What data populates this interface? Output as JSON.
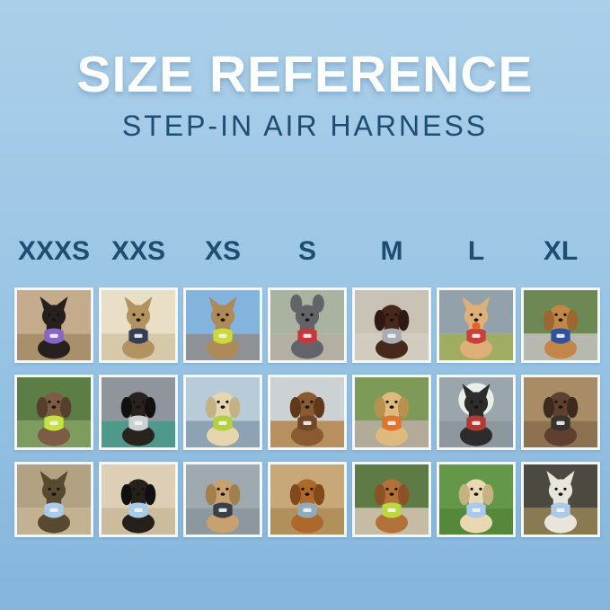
{
  "header": {
    "title": "SIZE REFERENCE",
    "subtitle": "STEP-IN AIR HARNESS"
  },
  "colors": {
    "background_top": "#abcfe9",
    "background_bottom": "#85b5dc",
    "title": "#fdfefe",
    "accent_dark": "#1d4e72",
    "tile_border": "#f4f8fb"
  },
  "sizes": [
    "XXXS",
    "XXS",
    "XS",
    "S",
    "M",
    "L",
    "XL"
  ],
  "grid": {
    "rows": 3,
    "columns": 7,
    "cells": [
      {
        "size": "XXXS",
        "row": 1,
        "label": "Black kitten wearing a purple harness indoors",
        "scene_top": "#c3ab8c",
        "scene_bottom": "#a8906d",
        "pet": "#26211e",
        "pet_dark": "#121010",
        "ears": "pointed",
        "harness": "#8766c4"
      },
      {
        "size": "XXS",
        "row": 1,
        "label": "Brown tabby bengal cat wearing a navy harness by cream curtains",
        "scene_top": "#e9dfc6",
        "scene_bottom": "#d6c9a9",
        "pet": "#b2925f",
        "pet_dark": "#6e5433",
        "ears": "pointed",
        "harness": "#343f57"
      },
      {
        "size": "XS",
        "row": 1,
        "label": "Tabby cat in a car wearing a neon yellow harness",
        "scene_top": "#83b4dd",
        "scene_bottom": "#8e9196",
        "pet": "#ad8a57",
        "pet_dark": "#6e5433",
        "ears": "pointed",
        "harness": "#cdd938"
      },
      {
        "size": "S",
        "row": 1,
        "label": "Grey french bulldog wearing a red harness on a roadside",
        "scene_top": "#aab3a0",
        "scene_bottom": "#b3afa3",
        "pet": "#63636a",
        "pet_dark": "#3c3c42",
        "ears": "bat",
        "harness": "#c43a3c"
      },
      {
        "size": "M",
        "row": 1,
        "label": "Chocolate spaniel wearing a grey harness on concrete",
        "scene_top": "#c9c3b5",
        "scene_bottom": "#d2ccc0",
        "pet": "#47291c",
        "pet_dark": "#2e1a12",
        "ears": "floppy",
        "harness": "#a9aeb4"
      },
      {
        "size": "L",
        "row": 1,
        "label": "Shiba inu with an orange ball wearing a red harness in a field",
        "scene_top": "#93a1ab",
        "scene_bottom": "#a0ac62",
        "pet": "#dcb077",
        "pet_dark": "#b98c54",
        "ears": "pointed",
        "harness": "#c8403a",
        "ball": "#e0622c"
      },
      {
        "size": "XL",
        "row": 1,
        "label": "Golden retriever wearing a navy harness on a path with sunflowers",
        "scene_top": "#6d8852",
        "scene_bottom": "#b7b9ae",
        "pet": "#c28648",
        "pet_dark": "#9c6731",
        "ears": "floppy",
        "harness": "#30519b"
      },
      {
        "size": "XXXS",
        "row": 2,
        "label": "Dapple dachshund puppy wearing a neon green harness in a garden",
        "scene_top": "#5d7d46",
        "scene_bottom": "#7d9c5e",
        "pet": "#7c5c44",
        "pet_dark": "#55402e",
        "ears": "floppy",
        "harness": "#c8e23b"
      },
      {
        "size": "XXS",
        "row": 2,
        "label": "Black pug puppy wearing a light grey harness on a teal blanket in a car",
        "scene_top": "#90959b",
        "scene_bottom": "#4f998b",
        "pet": "#28231f",
        "pet_dark": "#121110",
        "ears": "floppy",
        "harness": "#ccd1d6"
      },
      {
        "size": "XS",
        "row": 2,
        "label": "Cream dachshund wearing a lime green harness on a boat",
        "scene_top": "#b7cbd8",
        "scene_bottom": "#8da3b4",
        "pet": "#e6d6ae",
        "pet_dark": "#c4b184",
        "ears": "floppy",
        "harness": "#b3d13c"
      },
      {
        "size": "S",
        "row": 2,
        "label": "Long-haired brown dachshund in warm sunlight on a pier",
        "scene_top": "#ccd2d4",
        "scene_bottom": "#b8905f",
        "pet": "#8a5a30",
        "pet_dark": "#60381c",
        "ears": "floppy",
        "harness": "#6f4626"
      },
      {
        "size": "M",
        "row": 2,
        "label": "Golden retriever puppy wearing an orange harness on a patio",
        "scene_top": "#7e9a59",
        "scene_bottom": "#b3ab9a",
        "pet": "#deba7e",
        "pet_dark": "#b8914f",
        "ears": "floppy",
        "harness": "#e0742c"
      },
      {
        "size": "L",
        "row": 2,
        "label": "Black and tan kelpie wearing a red harness inside a corrugated tunnel",
        "scene_top": "#9ba5ac",
        "scene_bottom": "#8d979e",
        "pet": "#2c2c2c",
        "pet_dark": "#141414",
        "ears": "pointed",
        "harness": "#b23a30",
        "halo": "#e9efe7"
      },
      {
        "size": "XL",
        "row": 2,
        "label": "Brown and white dog wearing a dark harness on a wooden deck",
        "scene_top": "#a78c66",
        "scene_bottom": "#8d7251",
        "pet": "#5f4030",
        "pet_dark": "#3c2a1e",
        "ears": "floppy",
        "harness": "#37332f"
      },
      {
        "size": "XXXS",
        "row": 3,
        "label": "Yorkie puppy wearing a light blue harness on a sunny path",
        "scene_top": "#b3a184",
        "scene_bottom": "#c3b292",
        "pet": "#584931",
        "pet_dark": "#33291a",
        "ears": "pointed",
        "harness": "#a9cbe9"
      },
      {
        "size": "XXS",
        "row": 3,
        "label": "Black and tan dachshund wearing a light blue harness on car seats",
        "scene_top": "#dccfb5",
        "scene_bottom": "#cbbc9e",
        "pet": "#26201c",
        "pet_dark": "#101010",
        "ears": "floppy",
        "harness": "#a9cbe8"
      },
      {
        "size": "XS",
        "row": 3,
        "label": "Apricot poodle puppy wearing a black harness on a boardwalk",
        "scene_top": "#9fa9b0",
        "scene_bottom": "#8d979e",
        "pet": "#c8a171",
        "pet_dark": "#a37e4e",
        "ears": "floppy",
        "harness": "#3b4046"
      },
      {
        "size": "S",
        "row": 3,
        "label": "Red dachshund wearing a grey-blue harness on a sunny porch",
        "scene_top": "#c8a878",
        "scene_bottom": "#b2905c",
        "pet": "#ad692c",
        "pet_dark": "#82491a",
        "ears": "floppy",
        "harness": "#93a9bc"
      },
      {
        "size": "M",
        "row": 3,
        "label": "Apricot goldendoodle wearing a lime green harness on a sidewalk",
        "scene_top": "#5e7b46",
        "scene_bottom": "#c6bca6",
        "pet": "#b3713a",
        "pet_dark": "#8c5226",
        "ears": "floppy",
        "harness": "#bcd83e"
      },
      {
        "size": "L",
        "row": 3,
        "label": "Cream golden retriever puppy wearing a light blue harness on grass",
        "scene_top": "#649747",
        "scene_bottom": "#55883b",
        "pet": "#e9d8b1",
        "pet_dark": "#c6b183",
        "ears": "floppy",
        "harness": "#a9c9ec"
      },
      {
        "size": "XL",
        "row": 3,
        "label": "White shepherd mix wearing a light blue harness in an evening city scene",
        "scene_top": "#4c4a40",
        "scene_bottom": "#8a7a52",
        "pet": "#e9e5da",
        "pet_dark": "#c9c4b6",
        "ears": "pointed",
        "harness": "#adc9e8"
      }
    ]
  }
}
